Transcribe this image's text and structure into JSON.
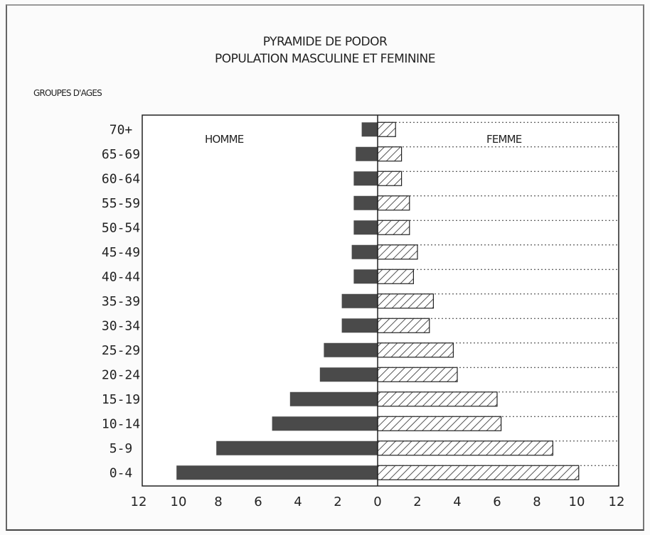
{
  "chart_data": {
    "type": "bar",
    "title": "PYRAMIDE DE PODOR",
    "subtitle": "POPULATION MASCULINE ET FEMININE",
    "ylabel": "GROUPES D'AGES",
    "categories": [
      "0-4",
      "5-9",
      "10-14",
      "15-19",
      "20-24",
      "25-29",
      "30-34",
      "35-39",
      "40-44",
      "45-49",
      "50-54",
      "55-59",
      "60-64",
      "65-69",
      "70+"
    ],
    "series": [
      {
        "name": "HOMME",
        "values": [
          10.1,
          8.1,
          5.3,
          4.4,
          2.9,
          2.7,
          1.8,
          1.8,
          1.2,
          1.3,
          1.2,
          1.2,
          1.2,
          1.1,
          0.8
        ]
      },
      {
        "name": "FEMME",
        "values": [
          10.1,
          8.8,
          6.2,
          6.0,
          4.0,
          3.8,
          2.6,
          2.8,
          1.8,
          2.0,
          1.6,
          1.6,
          1.2,
          1.2,
          0.9
        ]
      }
    ],
    "xticks": [
      "12",
      "10",
      "8",
      "6",
      "4",
      "2",
      "0",
      "2",
      "4",
      "6",
      "8",
      "10",
      "12"
    ],
    "xlim": [
      -10,
      10
    ],
    "colors": {
      "homme": "#4a4a4a",
      "femme_hatch": "#2a2a2a"
    }
  }
}
